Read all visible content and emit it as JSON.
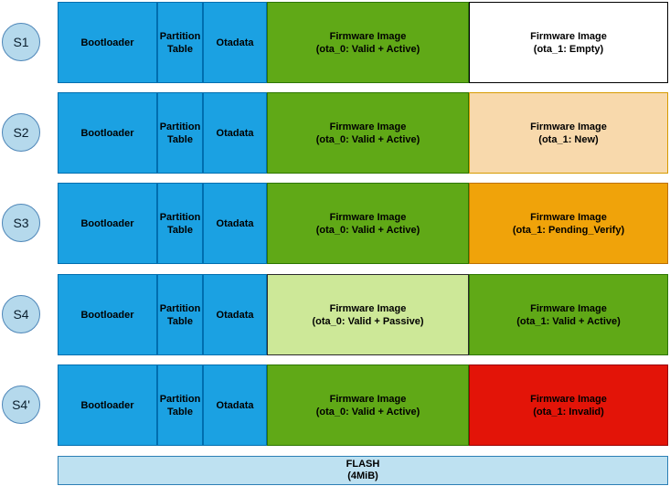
{
  "badge": {
    "fill": "#B5D9EC",
    "border": "#4E86B8"
  },
  "rows": [
    {
      "id": "S1",
      "segments": [
        {
          "name": "bootloader",
          "line1": "Bootloader",
          "line2": "",
          "fill": "#1BA1E2",
          "border": "#006EAF"
        },
        {
          "name": "partition-table",
          "line1": "Partition",
          "line2": "Table",
          "fill": "#1BA1E2",
          "border": "#006EAF"
        },
        {
          "name": "otadata",
          "line1": "Otadata",
          "line2": "",
          "fill": "#1BA1E2",
          "border": "#006EAF"
        },
        {
          "name": "ota0",
          "line1": "Firmware Image",
          "line2": "(ota_0: Valid + Active)",
          "fill": "#60A917",
          "border": "#2D7600"
        },
        {
          "name": "ota1",
          "line1": "Firmware Image",
          "line2": "(ota_1: Empty)",
          "fill": "#FFFFFF",
          "border": "#000000"
        }
      ]
    },
    {
      "id": "S2",
      "segments": [
        {
          "name": "bootloader",
          "line1": "Bootloader",
          "line2": "",
          "fill": "#1BA1E2",
          "border": "#006EAF"
        },
        {
          "name": "partition-table",
          "line1": "Partition",
          "line2": "Table",
          "fill": "#1BA1E2",
          "border": "#006EAF"
        },
        {
          "name": "otadata",
          "line1": "Otadata",
          "line2": "",
          "fill": "#1BA1E2",
          "border": "#006EAF"
        },
        {
          "name": "ota0",
          "line1": "Firmware Image",
          "line2": "(ota_0: Valid + Active)",
          "fill": "#60A917",
          "border": "#2D7600"
        },
        {
          "name": "ota1",
          "line1": "Firmware Image",
          "line2": "(ota_1: New)",
          "fill": "#F8D9AC",
          "border": "#D79B00"
        }
      ]
    },
    {
      "id": "S3",
      "segments": [
        {
          "name": "bootloader",
          "line1": "Bootloader",
          "line2": "",
          "fill": "#1BA1E2",
          "border": "#006EAF"
        },
        {
          "name": "partition-table",
          "line1": "Partition",
          "line2": "Table",
          "fill": "#1BA1E2",
          "border": "#006EAF"
        },
        {
          "name": "otadata",
          "line1": "Otadata",
          "line2": "",
          "fill": "#1BA1E2",
          "border": "#006EAF"
        },
        {
          "name": "ota0",
          "line1": "Firmware Image",
          "line2": "(ota_0: Valid + Active)",
          "fill": "#60A917",
          "border": "#2D7600"
        },
        {
          "name": "ota1",
          "line1": "Firmware Image",
          "line2": "(ota_1: Pending_Verify)",
          "fill": "#F0A30A",
          "border": "#BD7000"
        }
      ]
    },
    {
      "id": "S4",
      "segments": [
        {
          "name": "bootloader",
          "line1": "Bootloader",
          "line2": "",
          "fill": "#1BA1E2",
          "border": "#006EAF"
        },
        {
          "name": "partition-table",
          "line1": "Partition",
          "line2": "Table",
          "fill": "#1BA1E2",
          "border": "#006EAF"
        },
        {
          "name": "otadata",
          "line1": "Otadata",
          "line2": "",
          "fill": "#1BA1E2",
          "border": "#006EAF"
        },
        {
          "name": "ota0",
          "line1": "Firmware Image",
          "line2": "(ota_0: Valid + Passive)",
          "fill": "#CDE898",
          "border": "#2B2B2B"
        },
        {
          "name": "ota1",
          "line1": "Firmware Image",
          "line2": "(ota_1: Valid + Active)",
          "fill": "#60A917",
          "border": "#2D7600"
        }
      ]
    },
    {
      "id": "S4'",
      "segments": [
        {
          "name": "bootloader",
          "line1": "Bootloader",
          "line2": "",
          "fill": "#1BA1E2",
          "border": "#006EAF"
        },
        {
          "name": "partition-table",
          "line1": "Partition",
          "line2": "Table",
          "fill": "#1BA1E2",
          "border": "#006EAF"
        },
        {
          "name": "otadata",
          "line1": "Otadata",
          "line2": "",
          "fill": "#1BA1E2",
          "border": "#006EAF"
        },
        {
          "name": "ota0",
          "line1": "Firmware Image",
          "line2": "(ota_0: Valid + Active)",
          "fill": "#60A917",
          "border": "#2D7600"
        },
        {
          "name": "ota1",
          "line1": "Firmware Image",
          "line2": "(ota_1: Invalid)",
          "fill": "#E31408",
          "border": "#990000"
        }
      ]
    }
  ],
  "flash": {
    "line1": "FLASH",
    "line2": "(4MiB)",
    "fill": "#BEE1F1",
    "border": "#2C7FB5"
  }
}
